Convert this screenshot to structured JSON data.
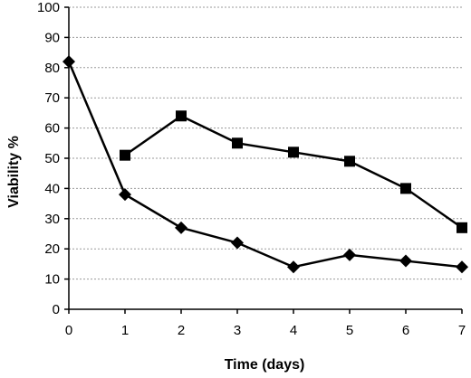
{
  "chart_data": {
    "type": "line",
    "title": "",
    "xlabel": "Time (days)",
    "ylabel": "Viability %",
    "xlim": [
      0,
      7
    ],
    "ylim": [
      0,
      100
    ],
    "x_ticks": [
      0,
      1,
      2,
      3,
      4,
      5,
      6,
      7
    ],
    "y_ticks": [
      0,
      10,
      20,
      30,
      40,
      50,
      60,
      70,
      80,
      90,
      100
    ],
    "grid": true,
    "legend": "none",
    "series": [
      {
        "marker": "diamond",
        "color": "#000000",
        "x": [
          0,
          1,
          2,
          3,
          4,
          5,
          6,
          7
        ],
        "values": [
          82,
          38,
          27,
          22,
          14,
          18,
          16,
          14
        ]
      },
      {
        "marker": "square",
        "color": "#000000",
        "x": [
          1,
          2,
          3,
          4,
          5,
          6,
          7
        ],
        "values": [
          51,
          64,
          55,
          52,
          49,
          40,
          27
        ]
      }
    ]
  }
}
